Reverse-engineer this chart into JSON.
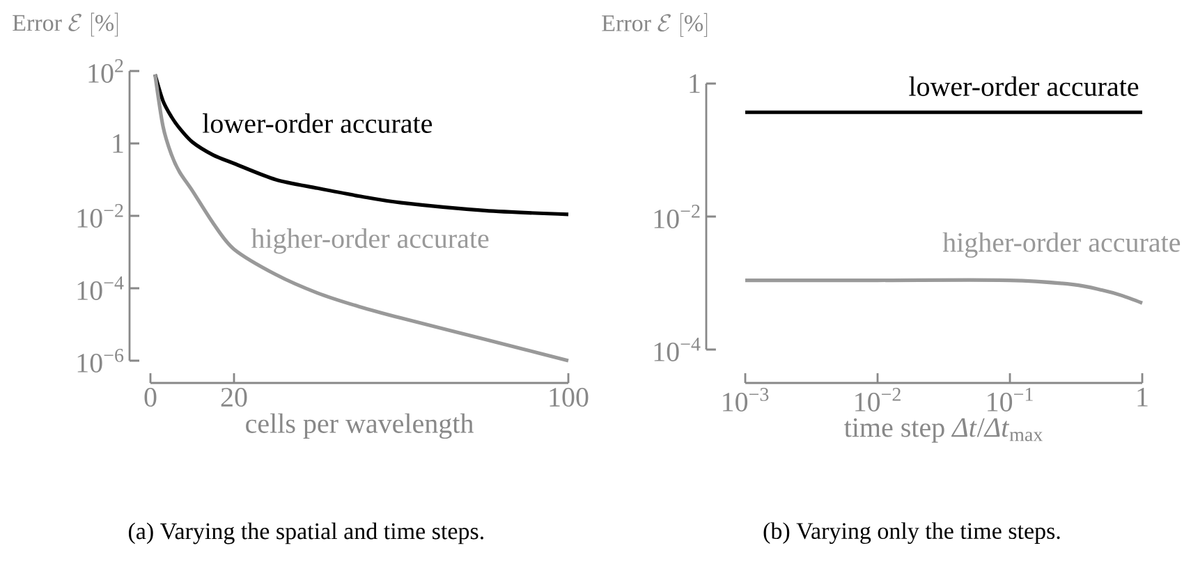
{
  "chart_data": [
    {
      "type": "line",
      "log": "y",
      "ylabel": "\\mathrm{Error}\\ \\mathcal{E}\\ [\\%]",
      "xlabel": "cells per wavelength",
      "xlim": [
        0,
        100
      ],
      "xticks": [
        0,
        20,
        100
      ],
      "ylim": [
        1e-06,
        100
      ],
      "yticks": [
        {
          "value": 1e-06,
          "label": "10$^{−6}$"
        },
        {
          "value": 0.0001,
          "label": "10$^{−4}$"
        },
        {
          "value": 0.01,
          "label": "10$^{−2}$"
        },
        1,
        {
          "value": 100,
          "label": "10$^{2}$"
        }
      ],
      "series": [
        {
          "name": "lower-order accurate",
          "color": "#000000",
          "x": [
            1.1,
            3,
            5,
            7,
            10,
            15,
            20,
            30,
            40,
            50,
            60,
            80,
            100
          ],
          "values": [
            80,
            15,
            5.5,
            2.6,
            1.1,
            0.48,
            0.28,
            0.1,
            0.058,
            0.035,
            0.023,
            0.014,
            0.011
          ]
        },
        {
          "name": "higher-order accurate",
          "color": "#999999",
          "x": [
            1.1,
            3,
            5,
            7,
            10,
            15,
            20,
            30,
            40,
            50,
            60,
            80,
            100
          ],
          "values": [
            80,
            3,
            0.5,
            0.16,
            0.05,
            0.0063,
            0.0012,
            0.00024,
            7.4e-05,
            3.1e-05,
            1.5e-05,
            3.9e-06,
            1e-06
          ]
        }
      ],
      "annotations": [
        "(a)  Varying the spatial and time steps."
      ]
    },
    {
      "type": "line",
      "log": "xy",
      "ylabel": "\\mathrm{Error}\\ \\mathcal{E}\\ [\\%]",
      "xlabel": "time step *Δt*/*Δt*$_{max}$",
      "xlim": [
        0.001,
        1
      ],
      "ylim": [
        0.0001,
        1
      ],
      "xticks": [
        {
          "value": 0.001,
          "label": "10$^{−3}$"
        },
        {
          "value": 0.01,
          "label": "10$^{−2}$"
        },
        {
          "value": 0.1,
          "label": "10$^{−1}$"
        },
        1
      ],
      "yticks": [
        {
          "value": 0.0001,
          "label": "10$^{−4}$"
        },
        {
          "value": 0.01,
          "label": "10$^{−2}$"
        },
        1
      ],
      "series": [
        {
          "name": "lower-order accurate",
          "color": "#000000",
          "x": [
            0.001,
            1
          ],
          "values": [
            0.37,
            0.37
          ]
        },
        {
          "name": "higher-order accurate",
          "color": "#999999",
          "x": [
            0.001,
            0.01,
            0.1,
            0.3,
            0.5,
            0.7,
            1
          ],
          "values": [
            0.0011,
            0.0011,
            0.0011,
            0.00095,
            0.00078,
            0.00065,
            0.0005
          ]
        }
      ],
      "annotations": [
        "(b)  Varying only the time steps."
      ]
    }
  ]
}
